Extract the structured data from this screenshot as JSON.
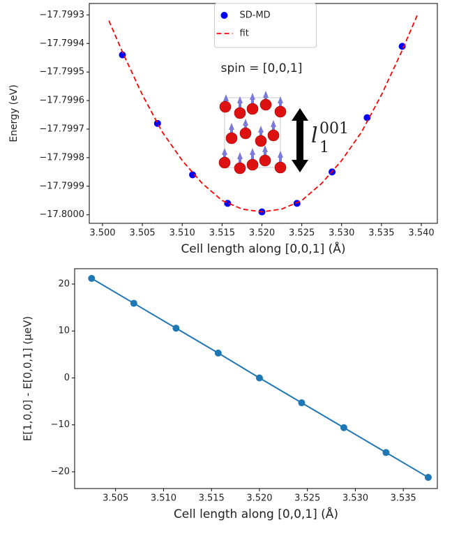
{
  "chart_data": [
    {
      "type": "scatter",
      "xlabel": "Cell length along [0,0,1] (Å)",
      "ylabel": "Energy (eV)",
      "annotation": "spin = [0,0,1]",
      "arrow_label": {
        "base": "l",
        "sup": "001",
        "sub": "1"
      },
      "legend": "upper center",
      "series": [
        {
          "name": "SD-MD",
          "color": "#0000ff",
          "mode": "markers",
          "x": [
            3.5025,
            3.5069,
            3.5113,
            3.5157,
            3.52,
            3.5244,
            3.5288,
            3.5332,
            3.5376
          ],
          "values": [
            -17.79944,
            -17.79968,
            -17.79986,
            -17.79996,
            -17.79999,
            -17.79996,
            -17.79985,
            -17.79966,
            -17.79941
          ]
        },
        {
          "name": "fit",
          "color": "#ff0000",
          "mode": "dashed",
          "x": [
            3.5008,
            3.5025,
            3.505,
            3.5075,
            3.51,
            3.5125,
            3.515,
            3.5175,
            3.52,
            3.5225,
            3.525,
            3.5275,
            3.53,
            3.5325,
            3.535,
            3.5375,
            3.5395
          ],
          "values": [
            -17.79932,
            -17.79943,
            -17.79958,
            -17.79971,
            -17.79981,
            -17.79989,
            -17.79995,
            -17.79998,
            -17.79999,
            -17.79998,
            -17.79995,
            -17.79989,
            -17.79981,
            -17.79971,
            -17.79958,
            -17.79943,
            -17.7993
          ]
        }
      ],
      "xlim": [
        3.49834,
        3.54201
      ],
      "xticks": [
        {
          "value": 3.5,
          "label": "3.500"
        },
        3.505,
        {
          "value": 3.51,
          "label": "3.510"
        },
        3.515,
        {
          "value": 3.52,
          "label": "3.520"
        },
        3.525,
        {
          "value": 3.53,
          "label": "3.530"
        },
        3.535,
        {
          "value": 3.54,
          "label": "3.540"
        }
      ],
      "ylim": [
        -17.80003,
        -17.79926
      ],
      "yticks": [
        {
          "value": -17.8,
          "label": "−17.8000"
        },
        {
          "value": -17.7999,
          "label": "−17.7999"
        },
        {
          "value": -17.7998,
          "label": "−17.7998"
        },
        {
          "value": -17.7997,
          "label": "−17.7997"
        },
        {
          "value": -17.7996,
          "label": "−17.7996"
        },
        {
          "value": -17.7995,
          "label": "−17.7995"
        },
        {
          "value": -17.7994,
          "label": "−17.7994"
        },
        {
          "value": -17.7993,
          "label": "−17.7993"
        }
      ]
    },
    {
      "type": "line",
      "xlabel": "Cell length along [0,0,1] (Å)",
      "ylabel": "E[1,0,0] - E[0,0,1] (μeV)",
      "series": [
        {
          "color": "#1f77b4",
          "mode": "line-markers",
          "x": [
            3.5025,
            3.5069,
            3.5113,
            3.5157,
            3.52,
            3.5244,
            3.5288,
            3.5332,
            3.5376
          ],
          "values": [
            21.2,
            15.9,
            10.6,
            5.3,
            0,
            -5.3,
            -10.6,
            -15.9,
            -21.2
          ]
        }
      ],
      "xlim": [
        3.50073,
        3.53855
      ],
      "xticks": [
        3.505,
        {
          "value": 3.51,
          "label": "3.510"
        },
        3.515,
        {
          "value": 3.52,
          "label": "3.520"
        },
        3.525,
        {
          "value": 3.53,
          "label": "3.530"
        },
        3.535
      ],
      "ylim": [
        -23.57,
        23.27
      ],
      "yticks": [
        {
          "value": -20,
          "label": "−20"
        },
        {
          "value": -10,
          "label": "−10"
        },
        0,
        10,
        20
      ]
    }
  ]
}
